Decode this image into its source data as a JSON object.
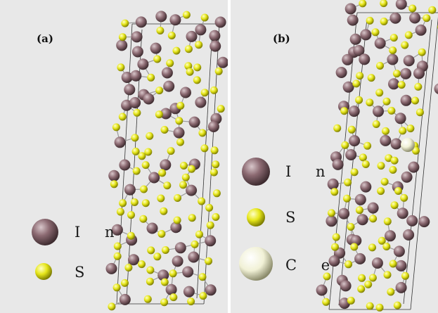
{
  "panels": [
    {
      "label": "(a)",
      "legend": [
        {
          "symbol": "In",
          "display": "I n",
          "color": "#8c6a72"
        },
        {
          "symbol": "S",
          "display": "S",
          "color": "#e6e61a"
        }
      ]
    },
    {
      "label": "(b)",
      "legend": [
        {
          "symbol": "In",
          "display": "I n",
          "color": "#8c6a72"
        },
        {
          "symbol": "S",
          "display": "S",
          "color": "#e6e61a"
        },
        {
          "symbol": "Ce",
          "display": "C e",
          "color": "#f1f1d6"
        }
      ]
    }
  ],
  "colors": {
    "background": "#e8e8e8",
    "indium": "#8c6a72",
    "sulfur": "#e6e61a",
    "cerium": "#f1f1d6",
    "cell_edge": "#333333",
    "bond": "#9a9a9a"
  }
}
